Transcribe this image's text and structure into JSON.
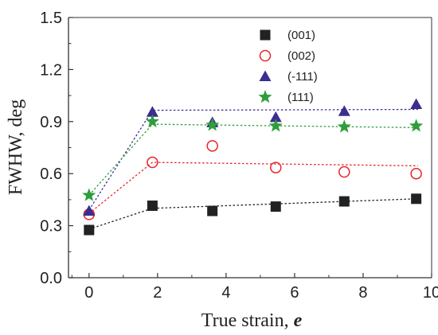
{
  "chart_data": {
    "type": "scatter",
    "xlabel": "True strain, ",
    "xlabel_var": "e",
    "ylabel": "FWHW, deg",
    "xlim": [
      -0.6,
      10
    ],
    "ylim": [
      0,
      1.5
    ],
    "x_ticks": [
      0,
      2,
      4,
      6,
      8,
      10
    ],
    "y_ticks": [
      0.0,
      0.3,
      0.6,
      0.9,
      1.2,
      1.5
    ],
    "y_tick_labels": [
      "0.0",
      "0.3",
      "0.6",
      "0.9",
      "1.2",
      "1.5"
    ],
    "legend_position": "top-right",
    "series": [
      {
        "name": "(001)",
        "marker": "square",
        "color": "#222222",
        "filled": true,
        "x": [
          0,
          1.85,
          3.6,
          5.45,
          7.45,
          9.55
        ],
        "y": [
          0.275,
          0.415,
          0.385,
          0.41,
          0.44,
          0.455
        ],
        "trend_x": [
          0,
          1.85,
          9.6
        ],
        "trend_y": [
          0.28,
          0.4,
          0.455
        ]
      },
      {
        "name": "(002)",
        "marker": "circle",
        "color": "#e8232a",
        "filled": false,
        "x": [
          0,
          1.85,
          3.6,
          5.45,
          7.45,
          9.55
        ],
        "y": [
          0.365,
          0.665,
          0.76,
          0.635,
          0.61,
          0.6
        ],
        "trend_x": [
          0,
          1.85,
          9.6
        ],
        "trend_y": [
          0.37,
          0.665,
          0.645
        ]
      },
      {
        "name": "(-111)",
        "marker": "triangle",
        "color": "#3a2e8f",
        "filled": true,
        "x": [
          0,
          1.85,
          3.6,
          5.45,
          7.45,
          9.55
        ],
        "y": [
          0.385,
          0.955,
          0.895,
          0.925,
          0.96,
          1.0
        ],
        "trend_x": [
          0,
          1.85,
          9.6
        ],
        "trend_y": [
          0.39,
          0.965,
          0.97
        ]
      },
      {
        "name": "(111)",
        "marker": "star",
        "color": "#2e9e3c",
        "filled": true,
        "x": [
          0,
          1.85,
          3.6,
          5.45,
          7.45,
          9.55
        ],
        "y": [
          0.475,
          0.9,
          0.88,
          0.875,
          0.87,
          0.875
        ],
        "trend_x": [
          0,
          1.85,
          9.6
        ],
        "trend_y": [
          0.475,
          0.885,
          0.865
        ]
      }
    ]
  }
}
